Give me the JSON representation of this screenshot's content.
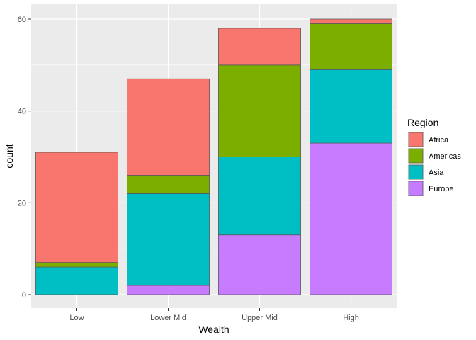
{
  "chart_data": {
    "type": "bar",
    "stacked": true,
    "xlabel": "Wealth",
    "ylabel": "count",
    "categories": [
      "Low",
      "Lower Mid",
      "Upper Mid",
      "High"
    ],
    "ylim": [
      0,
      62
    ],
    "yticks": [
      0,
      20,
      40,
      60
    ],
    "grid": true,
    "legend": {
      "title": "Region",
      "placement": "right"
    },
    "series": [
      {
        "name": "Europe",
        "color": "#C77CFF",
        "values": [
          0,
          2,
          13,
          33
        ]
      },
      {
        "name": "Asia",
        "color": "#00BFC4",
        "values": [
          6,
          20,
          17,
          16
        ]
      },
      {
        "name": "Americas",
        "color": "#7CAE00",
        "values": [
          1,
          4,
          20,
          10
        ]
      },
      {
        "name": "Africa",
        "color": "#F8766D",
        "values": [
          24,
          21,
          8,
          1
        ]
      }
    ],
    "legend_order": [
      "Africa",
      "Americas",
      "Asia",
      "Europe"
    ],
    "panel_background": "#EBEBEB",
    "grid_color": "#FFFFFF"
  }
}
